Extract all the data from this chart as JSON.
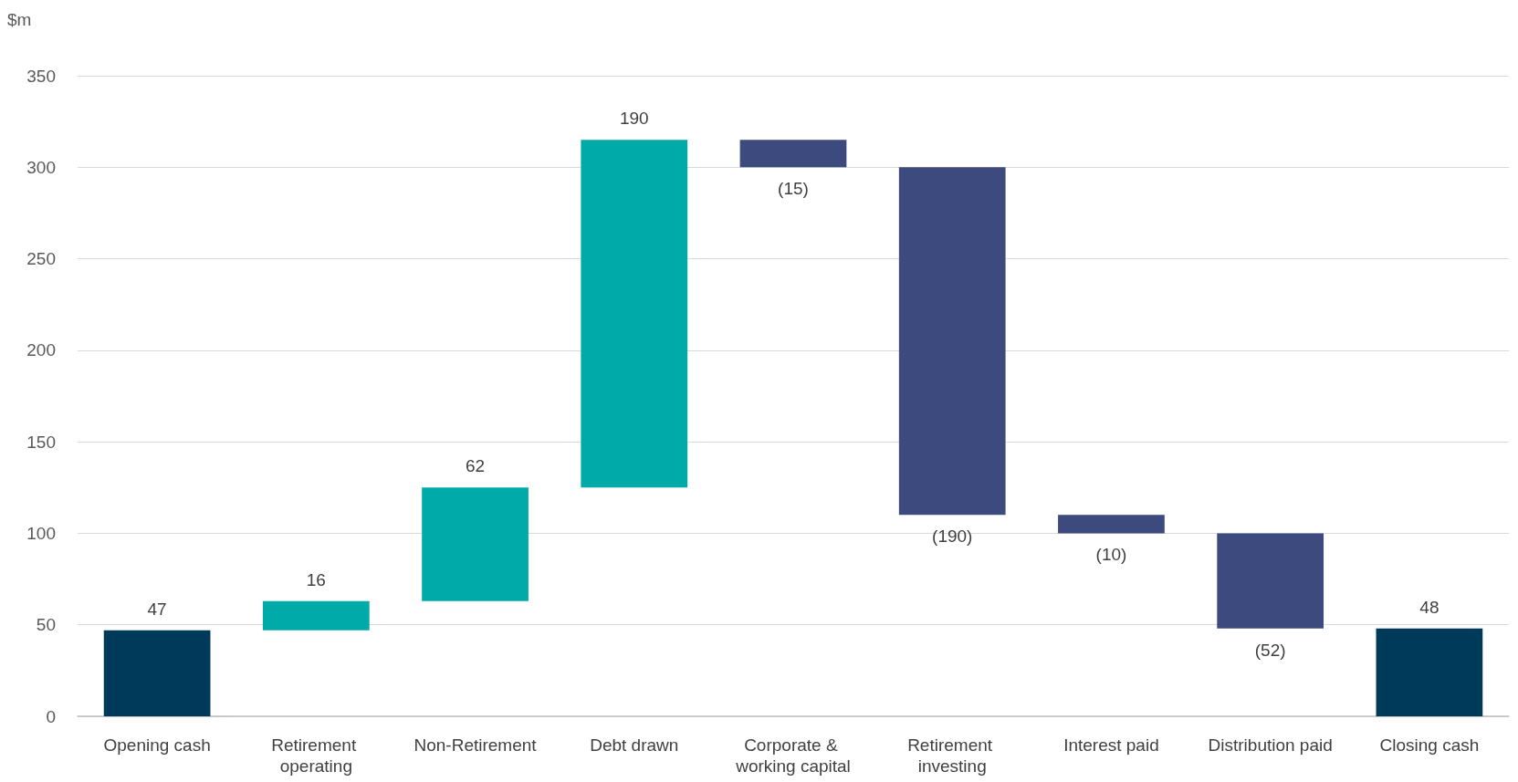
{
  "chart_data": {
    "type": "bar",
    "ylabel": "$m",
    "categories": [
      "Opening cash",
      "Retirement operating",
      "Non-Retirement",
      "Debt drawn",
      "Corporate & working capital",
      "Retirement investing",
      "Interest paid",
      "Distribution paid",
      "Closing cash"
    ],
    "values": [
      47,
      16,
      62,
      190,
      -15,
      -190,
      -10,
      -52,
      48
    ],
    "base": [
      0,
      47,
      63,
      125,
      315,
      300,
      110,
      100,
      0
    ],
    "colors": [
      "#003a5a",
      "#00aaa9",
      "#00aaa9",
      "#00aaa9",
      "#3d4a7e",
      "#3d4a7e",
      "#3d4a7e",
      "#3d4a7e",
      "#003a5a"
    ],
    "value_labels": [
      "47",
      "16",
      "62",
      "190",
      "(15)",
      "(190)",
      "(10)",
      "(52)",
      "48"
    ],
    "ylim": [
      0,
      350
    ],
    "yticks": [
      0,
      50,
      100,
      150,
      200,
      250,
      300,
      350
    ],
    "grid": "y"
  }
}
